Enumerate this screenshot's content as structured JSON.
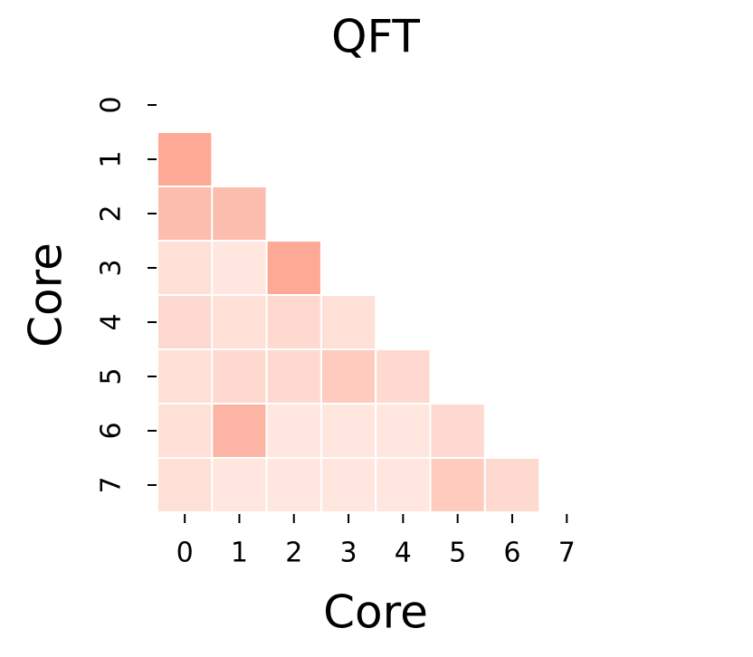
{
  "chart_data": {
    "type": "heatmap",
    "title": "QFT",
    "x_label": "Core",
    "y_label": "Core",
    "categories": [
      "0",
      "1",
      "2",
      "3",
      "4",
      "5",
      "6",
      "7"
    ],
    "values": [
      [
        null,
        null,
        null,
        null,
        null,
        null,
        null,
        null
      ],
      [
        0.55,
        null,
        null,
        null,
        null,
        null,
        null,
        null
      ],
      [
        0.4,
        0.4,
        null,
        null,
        null,
        null,
        null,
        null
      ],
      [
        0.15,
        0.1,
        0.55,
        null,
        null,
        null,
        null,
        null
      ],
      [
        0.2,
        0.15,
        0.2,
        0.15,
        null,
        null,
        null,
        null
      ],
      [
        0.15,
        0.2,
        0.2,
        0.3,
        0.2,
        null,
        null,
        null
      ],
      [
        0.15,
        0.45,
        0.1,
        0.1,
        0.1,
        0.2,
        null,
        null
      ],
      [
        0.15,
        0.1,
        0.1,
        0.1,
        0.1,
        0.3,
        0.2,
        null
      ]
    ],
    "colors": [
      "#fff5f0",
      "#fb6a4a"
    ]
  }
}
